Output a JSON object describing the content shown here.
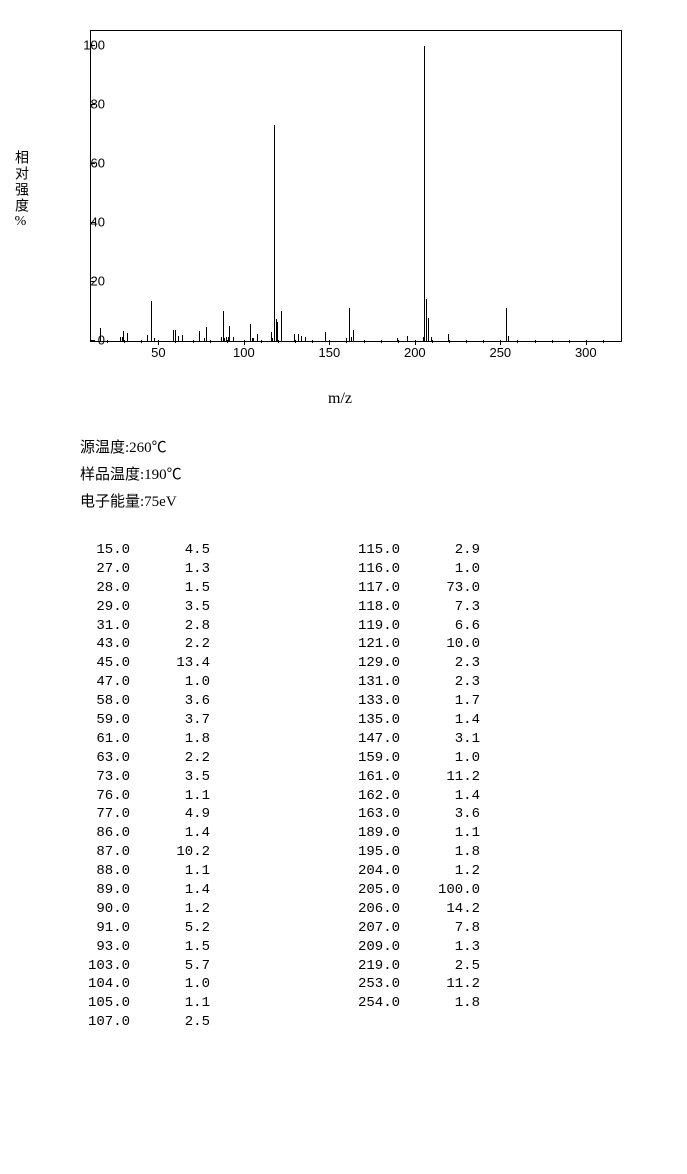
{
  "chart": {
    "type": "mass-spectrum-bar",
    "y_label": "相对强度%",
    "x_label": "m/z",
    "xlim": [
      10,
      320
    ],
    "ylim": [
      0,
      105
    ],
    "y_ticks": [
      0,
      20,
      40,
      60,
      80,
      100
    ],
    "x_ticks": [
      50,
      100,
      150,
      200,
      250,
      300
    ],
    "bar_color": "#000000",
    "background_color": "#ffffff",
    "axis_color": "#000000",
    "tick_fontsize": 13,
    "label_fontsize": 15
  },
  "meta": {
    "source_temp": "源温度:260℃",
    "sample_temp": "样品温度:190℃",
    "electron_energy": "电子能量:75eV"
  },
  "peaks": [
    {
      "mz": 15.0,
      "intensity": 4.5
    },
    {
      "mz": 27.0,
      "intensity": 1.3
    },
    {
      "mz": 28.0,
      "intensity": 1.5
    },
    {
      "mz": 29.0,
      "intensity": 3.5
    },
    {
      "mz": 31.0,
      "intensity": 2.8
    },
    {
      "mz": 43.0,
      "intensity": 2.2
    },
    {
      "mz": 45.0,
      "intensity": 13.4
    },
    {
      "mz": 47.0,
      "intensity": 1.0
    },
    {
      "mz": 58.0,
      "intensity": 3.6
    },
    {
      "mz": 59.0,
      "intensity": 3.7
    },
    {
      "mz": 61.0,
      "intensity": 1.8
    },
    {
      "mz": 63.0,
      "intensity": 2.2
    },
    {
      "mz": 73.0,
      "intensity": 3.5
    },
    {
      "mz": 76.0,
      "intensity": 1.1
    },
    {
      "mz": 77.0,
      "intensity": 4.9
    },
    {
      "mz": 86.0,
      "intensity": 1.4
    },
    {
      "mz": 87.0,
      "intensity": 10.2
    },
    {
      "mz": 88.0,
      "intensity": 1.1
    },
    {
      "mz": 89.0,
      "intensity": 1.4
    },
    {
      "mz": 90.0,
      "intensity": 1.2
    },
    {
      "mz": 91.0,
      "intensity": 5.2
    },
    {
      "mz": 93.0,
      "intensity": 1.5
    },
    {
      "mz": 103.0,
      "intensity": 5.7
    },
    {
      "mz": 104.0,
      "intensity": 1.0
    },
    {
      "mz": 105.0,
      "intensity": 1.1
    },
    {
      "mz": 107.0,
      "intensity": 2.5
    },
    {
      "mz": 115.0,
      "intensity": 2.9
    },
    {
      "mz": 116.0,
      "intensity": 1.0
    },
    {
      "mz": 117.0,
      "intensity": 73.0
    },
    {
      "mz": 118.0,
      "intensity": 7.3
    },
    {
      "mz": 119.0,
      "intensity": 6.6
    },
    {
      "mz": 121.0,
      "intensity": 10.0
    },
    {
      "mz": 129.0,
      "intensity": 2.3
    },
    {
      "mz": 131.0,
      "intensity": 2.3
    },
    {
      "mz": 133.0,
      "intensity": 1.7
    },
    {
      "mz": 135.0,
      "intensity": 1.4
    },
    {
      "mz": 147.0,
      "intensity": 3.1
    },
    {
      "mz": 159.0,
      "intensity": 1.0
    },
    {
      "mz": 161.0,
      "intensity": 11.2
    },
    {
      "mz": 162.0,
      "intensity": 1.4
    },
    {
      "mz": 163.0,
      "intensity": 3.6
    },
    {
      "mz": 189.0,
      "intensity": 1.1
    },
    {
      "mz": 195.0,
      "intensity": 1.8
    },
    {
      "mz": 204.0,
      "intensity": 1.2
    },
    {
      "mz": 205.0,
      "intensity": 100.0
    },
    {
      "mz": 206.0,
      "intensity": 14.2
    },
    {
      "mz": 207.0,
      "intensity": 7.8
    },
    {
      "mz": 209.0,
      "intensity": 1.3
    },
    {
      "mz": 219.0,
      "intensity": 2.5
    },
    {
      "mz": 253.0,
      "intensity": 11.2
    },
    {
      "mz": 254.0,
      "intensity": 1.8
    }
  ],
  "col_split": 26
}
